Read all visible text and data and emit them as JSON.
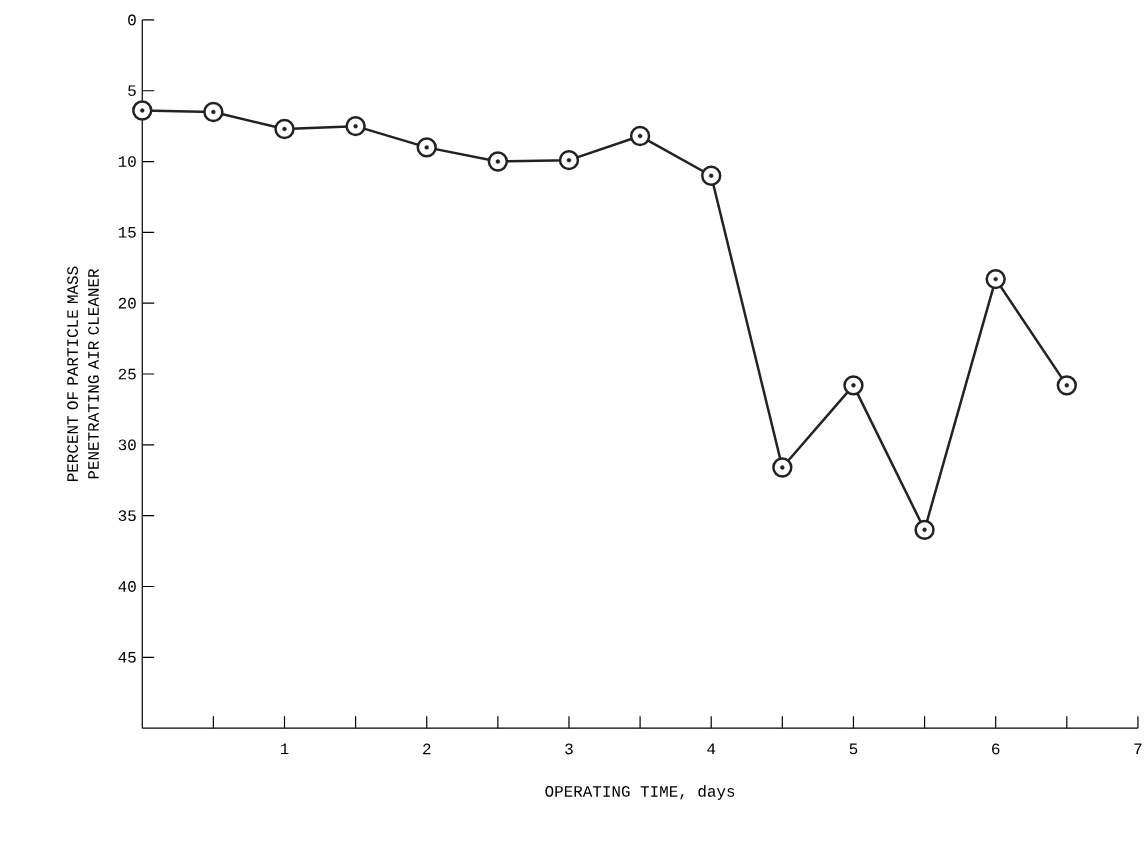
{
  "chart_data": {
    "type": "line",
    "xlabel": "OPERATING TIME, days",
    "ylabel": "PERCENT OF PARTICLE MASS PENETRATING AIR CLEANER",
    "x": [
      0,
      0.5,
      1,
      1.5,
      2,
      2.5,
      3,
      3.5,
      4,
      4.5,
      5,
      5.5,
      6,
      6.5
    ],
    "series": [
      {
        "color": "#222222",
        "values": [
          6.4,
          6.5,
          7.7,
          7.5,
          9.0,
          10.0,
          9.9,
          8.2,
          11.0,
          31.6,
          25.8,
          36.0,
          18.3,
          25.8
        ]
      }
    ],
    "xlim": [
      0,
      7
    ],
    "xticks": [
      {
        "value": 0.5,
        "label": null
      },
      1,
      {
        "value": 1.5,
        "label": null
      },
      2,
      {
        "value": 2.5,
        "label": null
      },
      3,
      {
        "value": 3.5,
        "label": null
      },
      4,
      {
        "value": 4.5,
        "label": null
      },
      5,
      {
        "value": 5.5,
        "label": null
      },
      6,
      {
        "value": 6.5,
        "label": null
      },
      7
    ],
    "ylim": [
      50,
      0
    ],
    "yticks": [
      0,
      5,
      10,
      15,
      20,
      25,
      30,
      35,
      40,
      45
    ],
    "marker": "circle",
    "line_style": "solid"
  }
}
